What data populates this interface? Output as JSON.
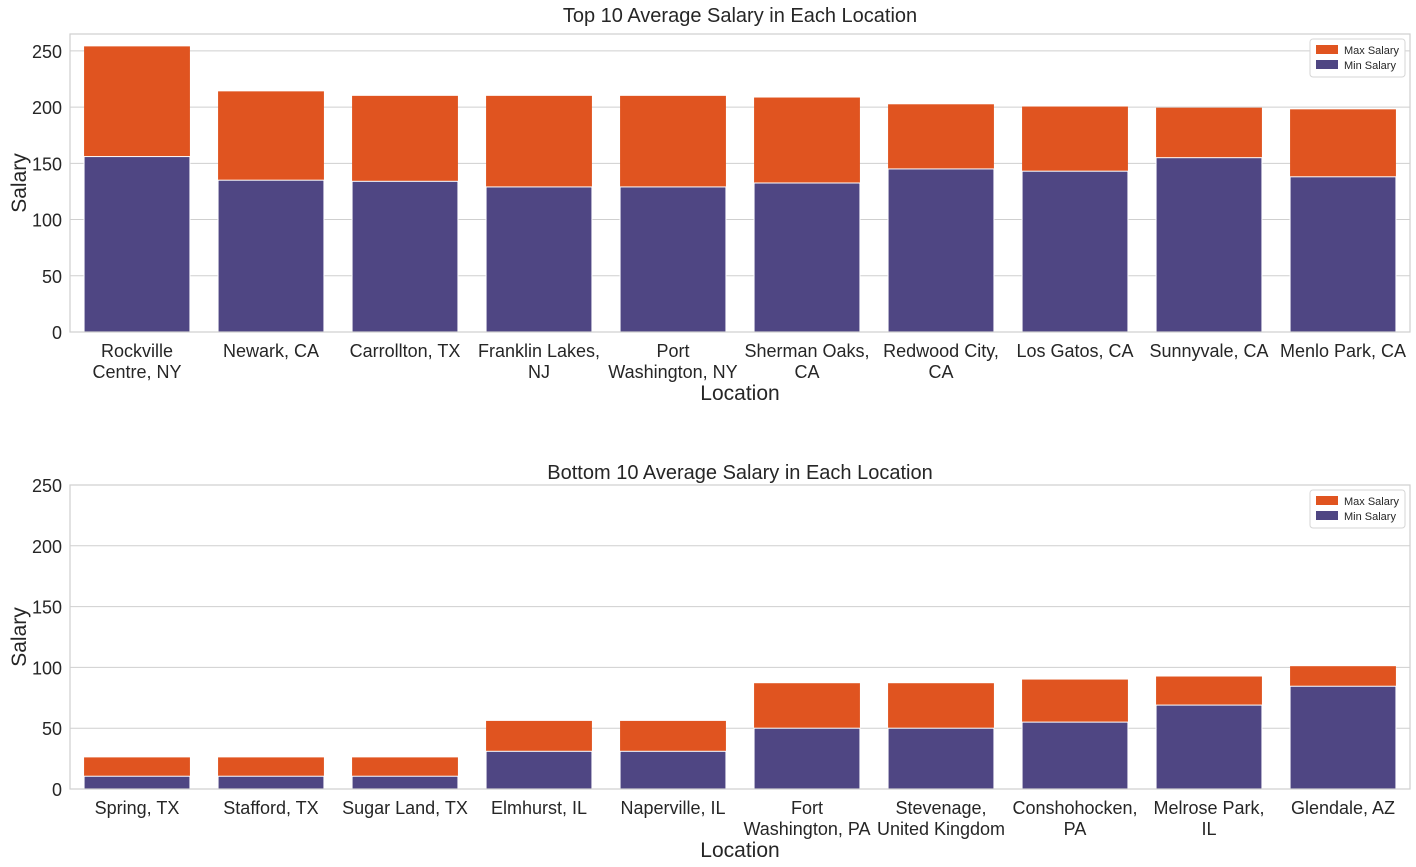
{
  "colors": {
    "max_salary": "#e05420",
    "min_salary": "#4f4683"
  },
  "chart_data": [
    {
      "type": "bar",
      "stacked": "overlay",
      "title": "Top 10 Average Salary in Each Location",
      "xlabel": "Location",
      "ylabel": "Salary",
      "ylim": [
        0,
        265
      ],
      "yticks": [
        0,
        50,
        100,
        150,
        200,
        250
      ],
      "grid": true,
      "legend_position": "top-right",
      "categories": [
        [
          "Rockville",
          "Centre, NY"
        ],
        [
          "Newark, CA"
        ],
        [
          "Carrollton, TX"
        ],
        [
          "Franklin Lakes,",
          "NJ"
        ],
        [
          "Port",
          "Washington, NY"
        ],
        [
          "Sherman Oaks,",
          "CA"
        ],
        [
          "Redwood City,",
          "CA"
        ],
        [
          "Los Gatos, CA"
        ],
        [
          "Sunnyvale, CA"
        ],
        [
          "Menlo Park, CA"
        ]
      ],
      "series": [
        {
          "name": "Max Salary",
          "values": [
            254,
            214,
            210,
            210,
            210,
            208.5,
            202.5,
            200.5,
            199.5,
            198
          ]
        },
        {
          "name": "Min Salary",
          "values": [
            156,
            135,
            134,
            129,
            129,
            132.5,
            145,
            143,
            155,
            138
          ]
        }
      ]
    },
    {
      "type": "bar",
      "stacked": "overlay",
      "title": "Bottom 10 Average Salary in Each Location",
      "xlabel": "Location",
      "ylabel": "Salary",
      "ylim": [
        0,
        250
      ],
      "yticks": [
        0,
        50,
        100,
        150,
        200,
        250
      ],
      "grid": true,
      "legend_position": "top-right",
      "categories": [
        [
          "Spring, TX"
        ],
        [
          "Stafford, TX"
        ],
        [
          "Sugar Land, TX"
        ],
        [
          "Elmhurst, IL"
        ],
        [
          "Naperville, IL"
        ],
        [
          "Fort",
          "Washington, PA"
        ],
        [
          "Stevenage,",
          "United Kingdom"
        ],
        [
          "Conshohocken,",
          "PA"
        ],
        [
          "Melrose Park,",
          "IL"
        ],
        [
          "Glendale, AZ"
        ]
      ],
      "series": [
        {
          "name": "Max Salary",
          "values": [
            26,
            26,
            26,
            56,
            56,
            87,
            87,
            90,
            92.5,
            101
          ]
        },
        {
          "name": "Min Salary",
          "values": [
            10.5,
            10.5,
            10.5,
            31,
            31,
            50,
            50,
            55,
            69,
            84.5
          ]
        }
      ]
    }
  ]
}
